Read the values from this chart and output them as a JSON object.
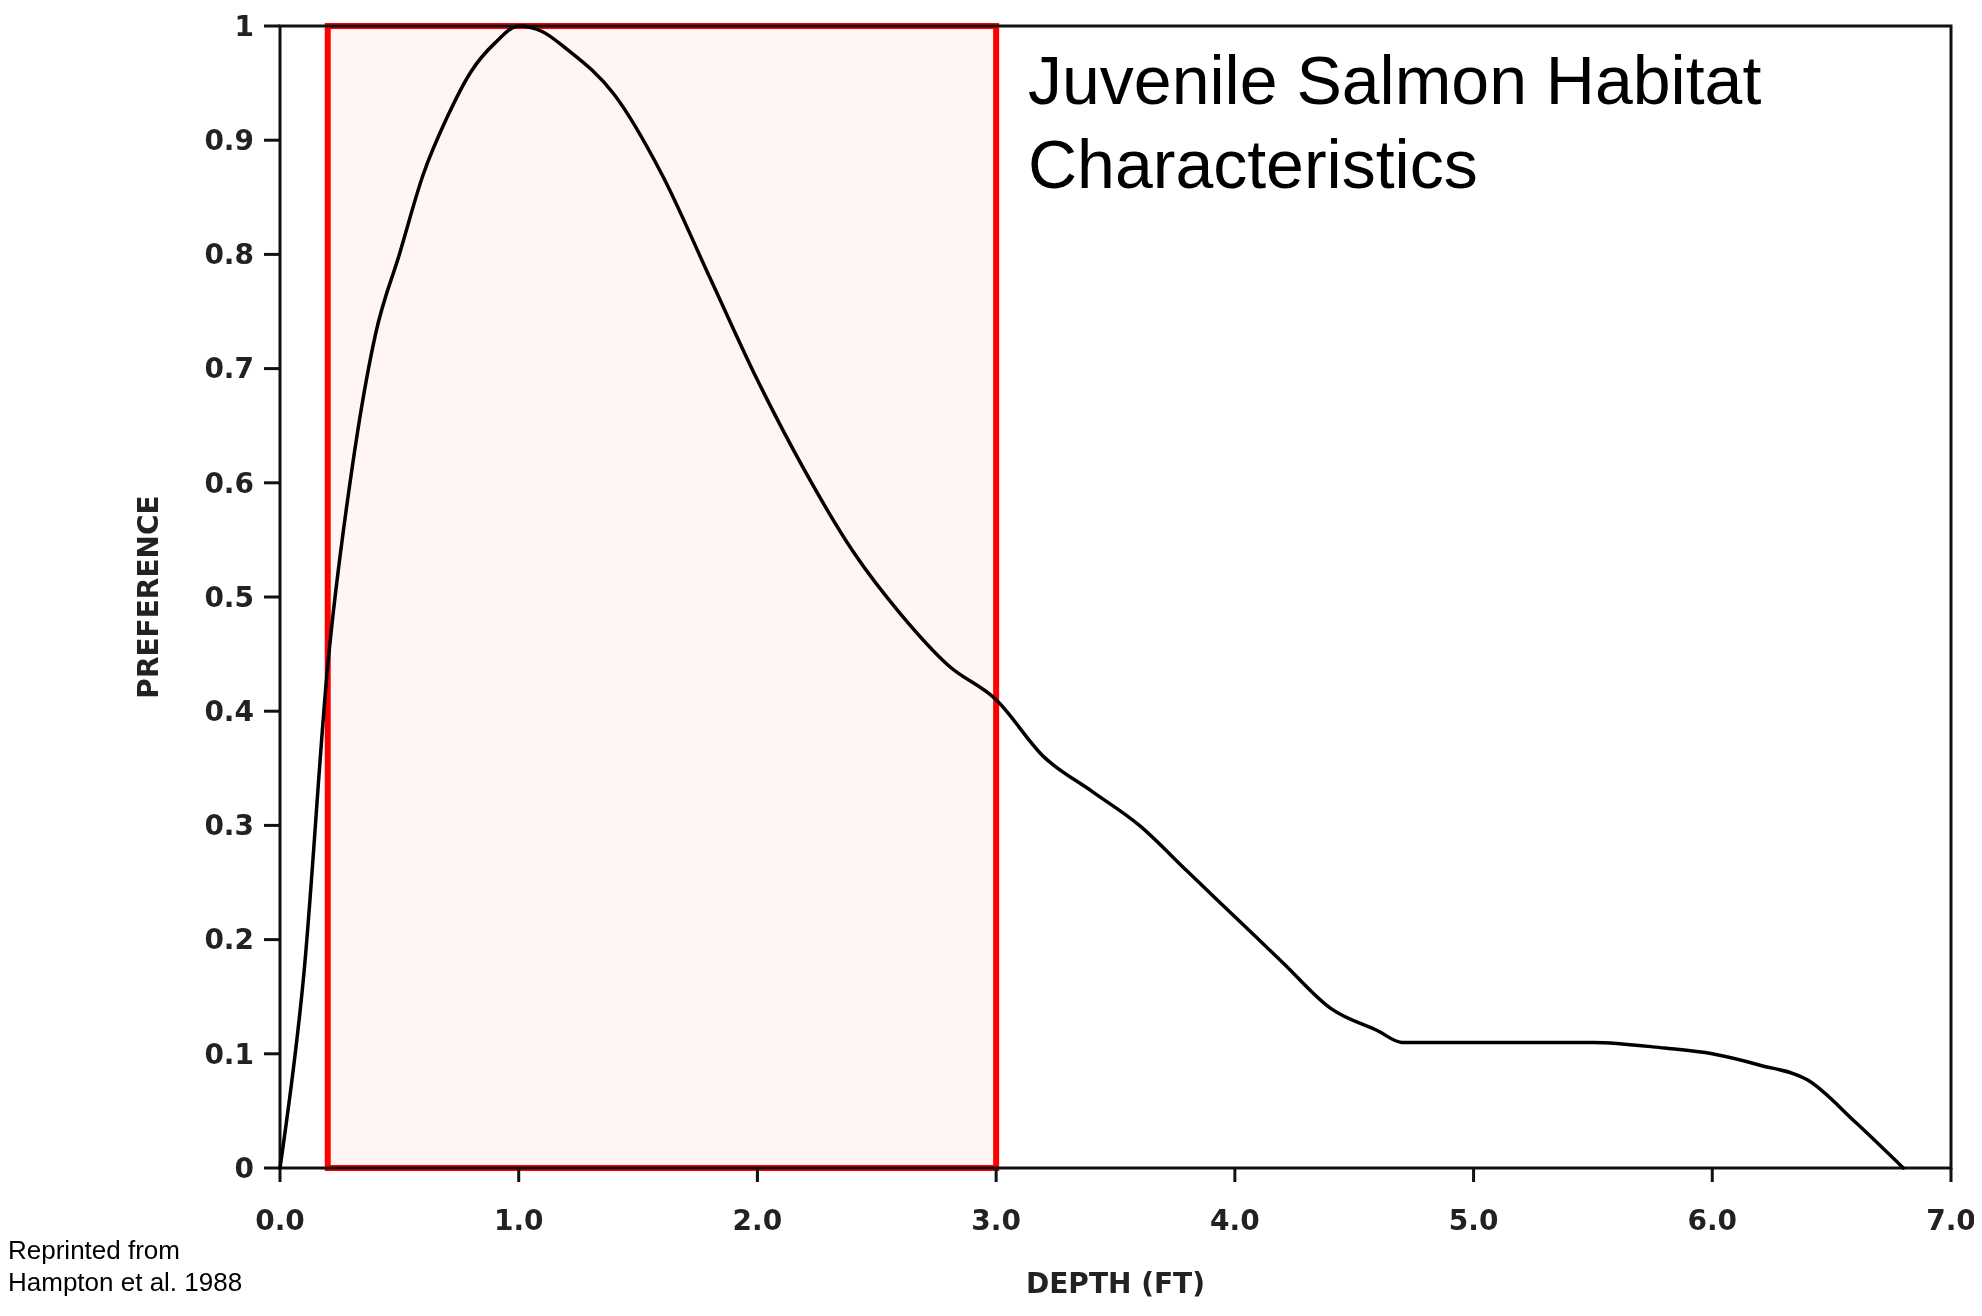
{
  "chart_data": {
    "type": "line",
    "title": "Juvenile Salmon Habitat Characteristics",
    "xlabel": "DEPTH (FT)",
    "ylabel": "PREFERENCE",
    "annotations": [
      "Reprinted from Hampton et al. 1988"
    ],
    "x": [
      0,
      0.1,
      0.2,
      0.3,
      0.4,
      0.5,
      0.6,
      0.7,
      0.8,
      0.9,
      1.0,
      1.1,
      1.2,
      1.4,
      1.6,
      1.8,
      2.0,
      2.2,
      2.4,
      2.6,
      2.8,
      3.0,
      3.2,
      3.4,
      3.6,
      3.8,
      4.0,
      4.2,
      4.4,
      4.6,
      4.7,
      5.0,
      5.5,
      5.8,
      6.0,
      6.2,
      6.4,
      6.6,
      6.8
    ],
    "series": [
      {
        "color": "#000000",
        "values": [
          0,
          0.17,
          0.44,
          0.61,
          0.73,
          0.8,
          0.87,
          0.92,
          0.96,
          0.985,
          1.0,
          0.995,
          0.98,
          0.94,
          0.87,
          0.78,
          0.69,
          0.61,
          0.54,
          0.485,
          0.44,
          0.41,
          0.36,
          0.33,
          0.3,
          0.26,
          0.22,
          0.18,
          0.14,
          0.12,
          0.11,
          0.11,
          0.11,
          0.105,
          0.1,
          0.09,
          0.077,
          0.04,
          0
        ]
      }
    ],
    "xlim": [
      0,
      7
    ],
    "xticks": [
      {
        "value": 0,
        "label": "0.0"
      },
      {
        "value": 1,
        "label": "1.0"
      },
      {
        "value": 2,
        "label": "2.0"
      },
      {
        "value": 3,
        "label": "3.0"
      },
      {
        "value": 4,
        "label": "4.0"
      },
      {
        "value": 5,
        "label": "5.0"
      },
      {
        "value": 6,
        "label": "6.0"
      },
      {
        "value": 7,
        "label": "7.0"
      }
    ],
    "ylim": [
      0,
      1
    ],
    "yticks": [
      0,
      0.1,
      0.2,
      0.3,
      0.4,
      0.5,
      0.6,
      0.7,
      0.8,
      0.9,
      1
    ],
    "bands": [
      {
        "axis": "x",
        "from": 0.2,
        "to": 3.0,
        "color": "#ff0000"
      }
    ],
    "grid": false,
    "marker": "none",
    "line_style": "solid"
  }
}
